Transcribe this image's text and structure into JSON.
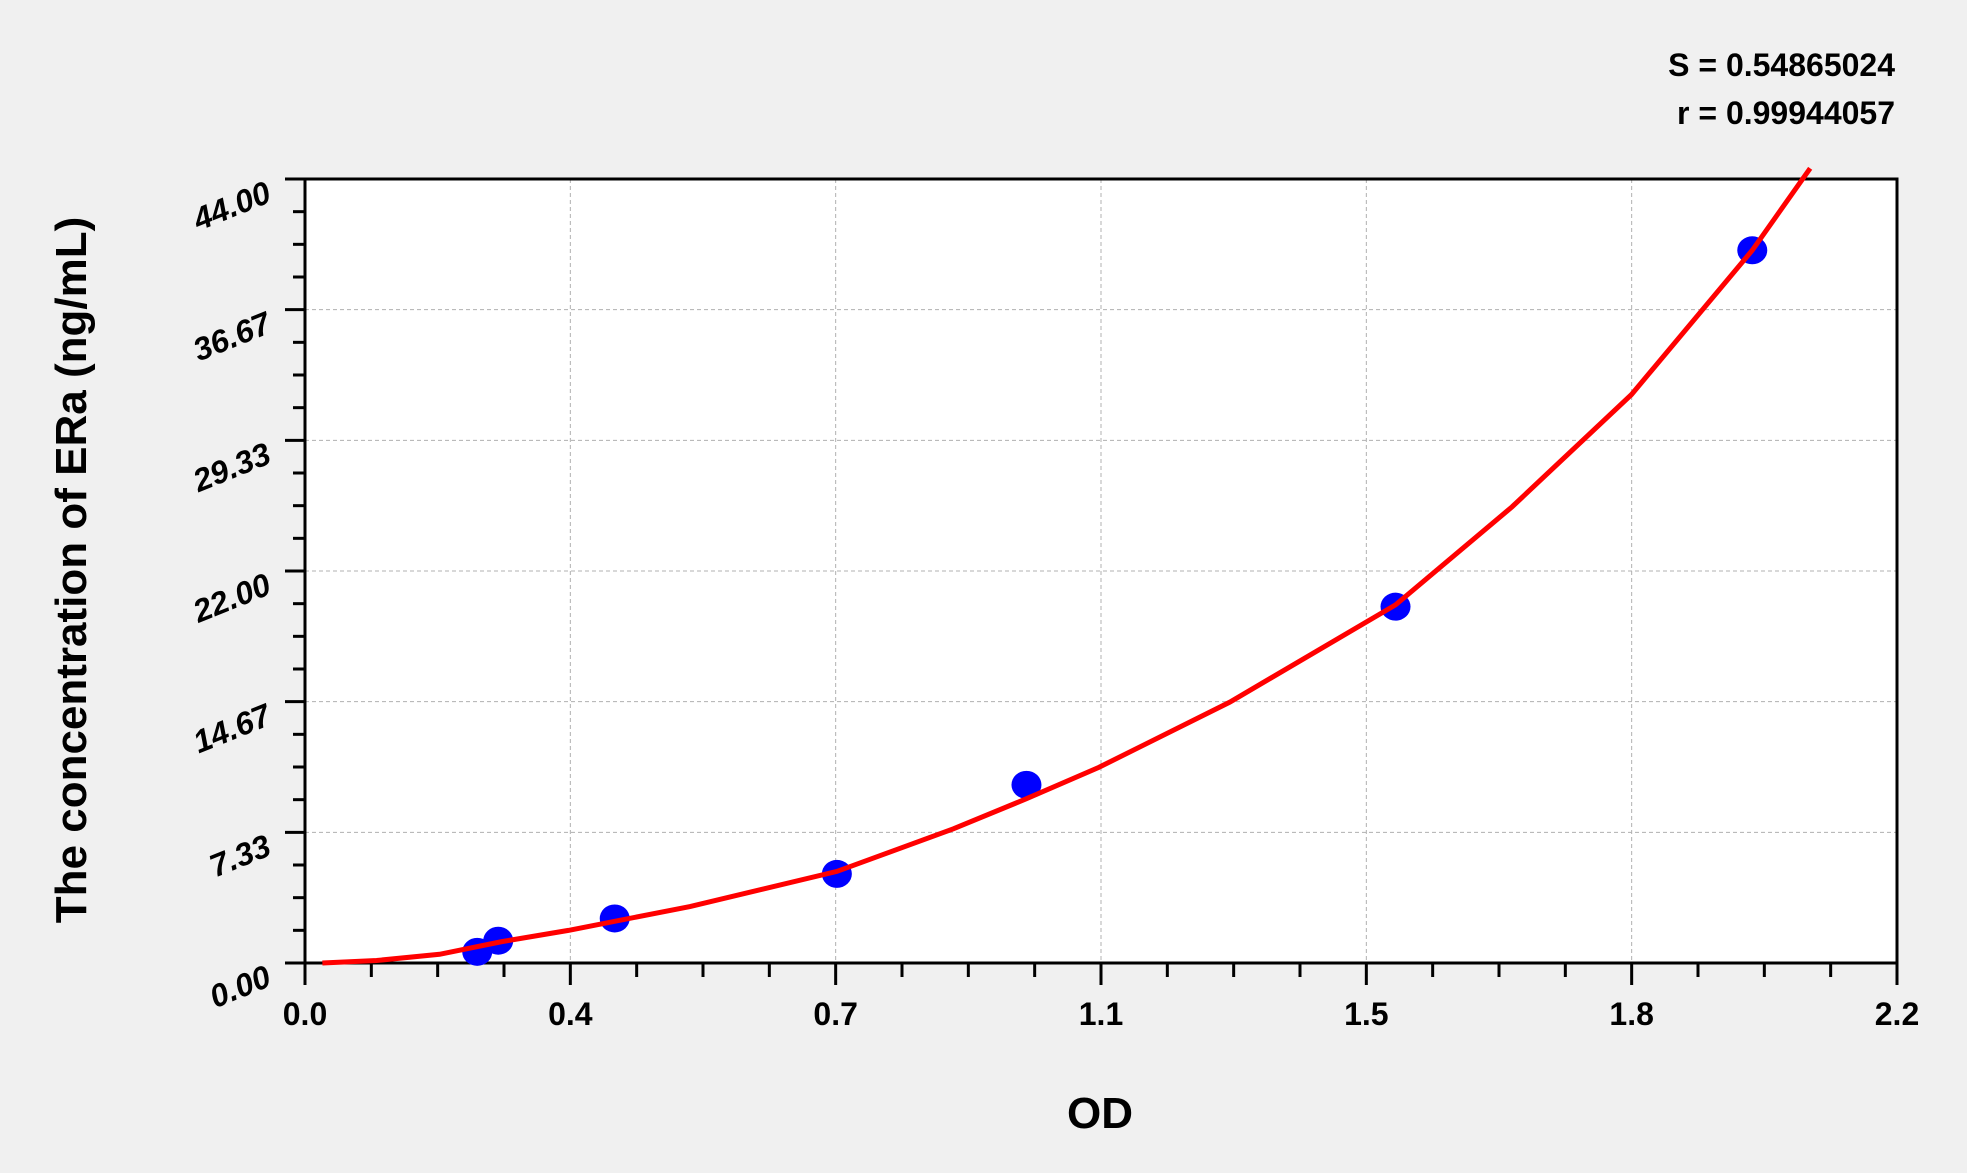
{
  "chart_data": {
    "type": "scatter",
    "xlabel": "OD",
    "ylabel": "The concentration of ERa (ng/mL)",
    "xlim": [
      0,
      2.2
    ],
    "ylim": [
      0,
      44
    ],
    "x_ticks": [
      "0.0",
      "0.4",
      "0.7",
      "1.1",
      "1.5",
      "1.8",
      "2.2"
    ],
    "y_ticks": [
      "0.00",
      "7.33",
      "14.67",
      "22.00",
      "29.33",
      "36.67",
      "44.00"
    ],
    "grid": true,
    "stats": [
      "S = 0.54865024",
      "r = 0.99944057"
    ],
    "points": {
      "x": [
        0.238,
        0.267,
        0.428,
        0.735,
        0.997,
        1.507,
        2.0
      ],
      "y": [
        0.625,
        1.25,
        2.5,
        5.0,
        10.0,
        20.0,
        40.0
      ],
      "color": "#0000ff"
    },
    "fit_curve": {
      "color": "#ff0000",
      "x": [
        0.024,
        0.099,
        0.186,
        0.272,
        0.364,
        0.532,
        0.735,
        0.896,
        0.997,
        1.097,
        1.278,
        1.507,
        1.668,
        1.833,
        2.0,
        2.08
      ],
      "y": [
        0.0,
        0.14,
        0.49,
        1.2,
        1.83,
        3.17,
        5.14,
        7.53,
        9.22,
        10.98,
        14.64,
        20.1,
        25.6,
        31.9,
        40.0,
        44.6
      ]
    }
  }
}
